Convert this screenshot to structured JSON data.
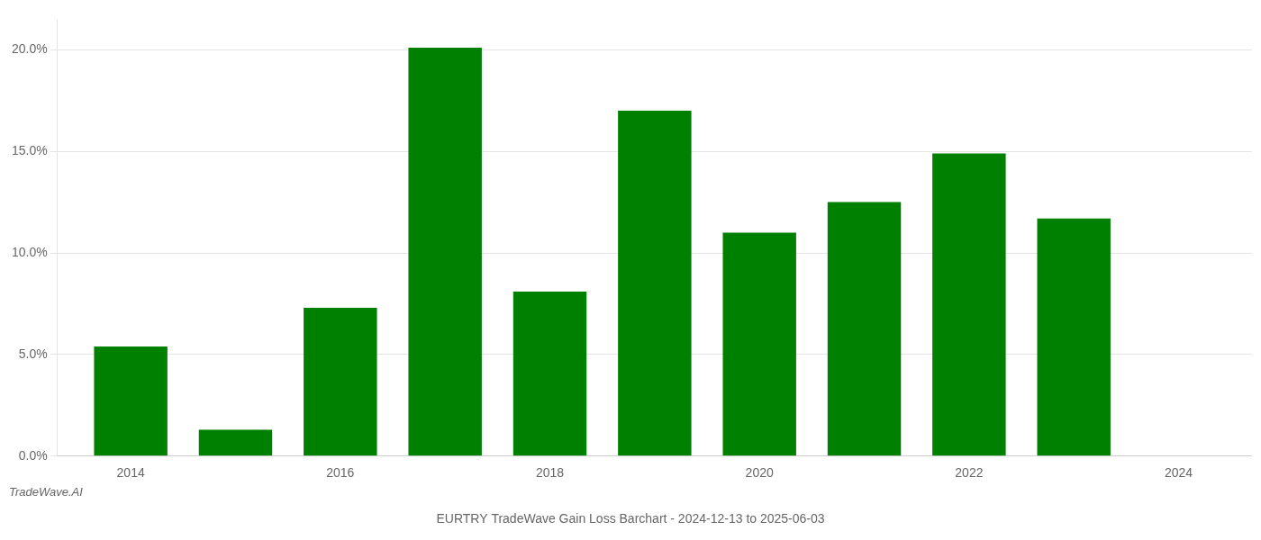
{
  "chart_data": {
    "type": "bar",
    "title": "EURTRY TradeWave Gain Loss Barchart - 2024-12-13 to 2025-06-03",
    "annotations": [
      "TradeWave.AI"
    ],
    "x": [
      2014,
      2015,
      2016,
      2017,
      2018,
      2019,
      2020,
      2021,
      2022,
      2023,
      2024
    ],
    "values": [
      0.054,
      0.013,
      0.073,
      0.201,
      0.081,
      0.17,
      0.11,
      0.125,
      0.149,
      0.117,
      0.0
    ],
    "color": "#008000",
    "xlim": [
      2013.3,
      2024.7
    ],
    "xticks": [
      2014,
      2016,
      2018,
      2020,
      2022,
      2024
    ],
    "ylim": [
      0,
      0.215
    ],
    "yticks": [
      {
        "value": 0.0,
        "label": "0.0%"
      },
      {
        "value": 0.05,
        "label": "5.0%"
      },
      {
        "value": 0.1,
        "label": "10.0%"
      },
      {
        "value": 0.15,
        "label": "15.0%"
      },
      {
        "value": 0.2,
        "label": "20.0%"
      }
    ],
    "grid": true
  }
}
